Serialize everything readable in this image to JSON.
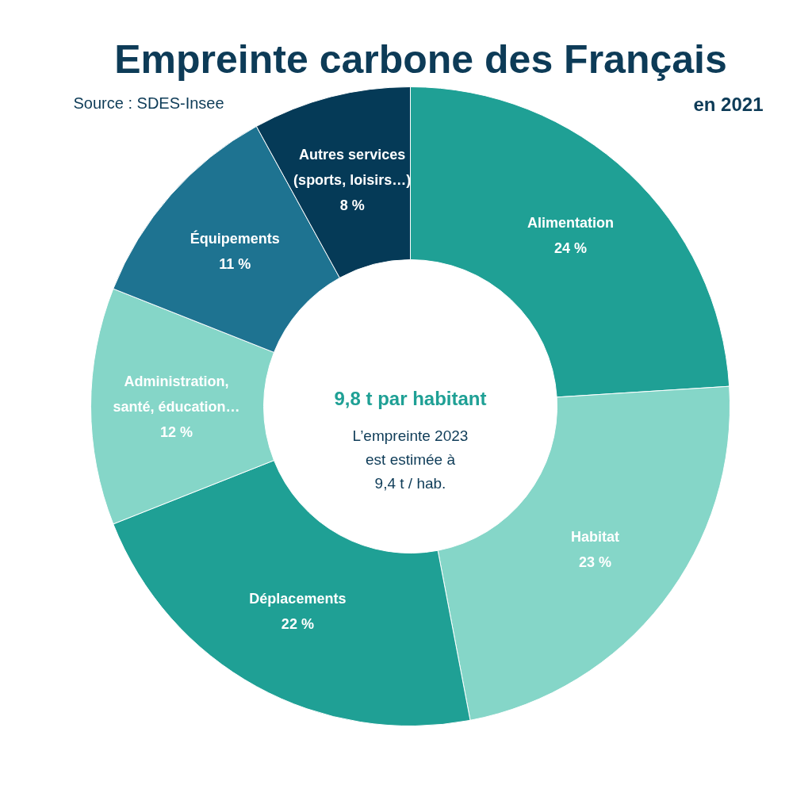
{
  "chart_data": {
    "type": "donut",
    "title": "Empreinte carbone des Français",
    "subtitle": "en 2021",
    "categories": [
      "Alimentation",
      "Habitat",
      "Déplacements",
      "Administration, santé, éducation…",
      "Équipements",
      "Autres services (sports, loisirs…)"
    ],
    "values": [
      24,
      23,
      22,
      12,
      11,
      8
    ],
    "value_labels": [
      "24 %",
      "23 %",
      "22 %",
      "12 %",
      "11 %",
      "8 %"
    ],
    "colors": [
      "#1fa095",
      "#85d6c8",
      "#1fa095",
      "#85d6c8",
      "#1e7391",
      "#053a57"
    ],
    "annotations": [
      "Source : SDES-Insee",
      "9,8 t par habitant",
      "L’empreinte 2023 est estimée à 9,4 t / hab."
    ]
  }
}
